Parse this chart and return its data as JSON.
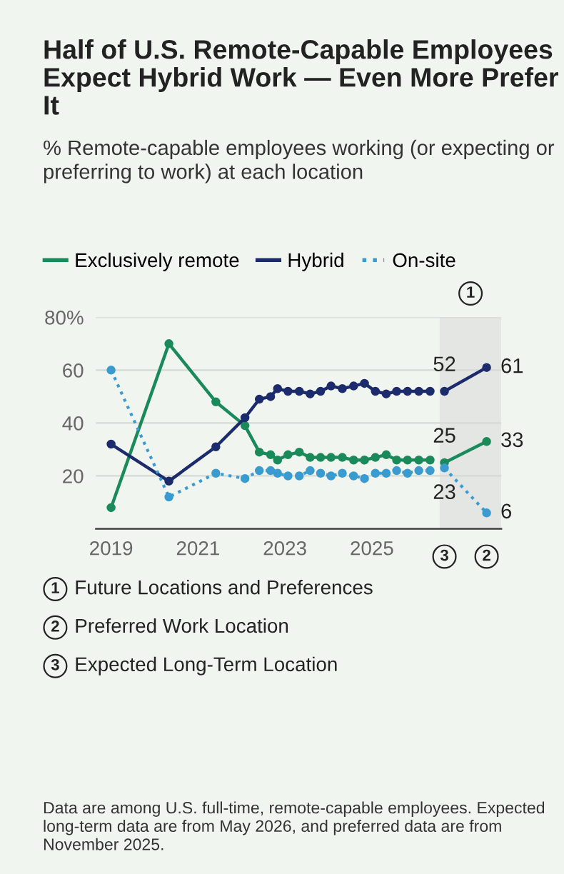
{
  "chart_data": {
    "type": "line",
    "title": "Half of U.S. Remote-Capable Employees Expect Hybrid Work — Even More Prefer It",
    "subtitle": "% Remote-capable employees working (or expecting or preferring to work) at each location",
    "series": [
      {
        "name": "Exclusively remote",
        "color": "#1b8a5a",
        "line_style": "solid",
        "x": [
          2019.0,
          2020.33,
          2021.41,
          2022.08,
          2022.41,
          2022.67,
          2022.83,
          2023.07,
          2023.33,
          2023.58,
          2023.82,
          2024.06,
          2024.32,
          2024.58,
          2024.83,
          2025.08,
          2025.33,
          2025.57,
          2025.82,
          2026.08,
          2026.34
        ],
        "values": [
          8,
          70,
          48,
          39,
          29,
          28,
          26,
          28,
          29,
          27,
          27,
          27,
          27,
          26,
          26,
          27,
          28,
          26,
          26,
          26,
          26
        ]
      },
      {
        "name": "Hybrid",
        "color": "#1c2b6b",
        "line_style": "solid",
        "x": [
          2019.0,
          2020.33,
          2021.41,
          2022.08,
          2022.41,
          2022.67,
          2022.83,
          2023.07,
          2023.33,
          2023.58,
          2023.82,
          2024.06,
          2024.32,
          2024.58,
          2024.83,
          2025.08,
          2025.33,
          2025.57,
          2025.82,
          2026.08,
          2026.34
        ],
        "values": [
          32,
          18,
          31,
          42,
          49,
          50,
          53,
          52,
          52,
          51,
          52,
          54,
          53,
          54,
          55,
          52,
          51,
          52,
          52,
          52,
          52
        ]
      },
      {
        "name": "On-site",
        "color": "#3a9bd0",
        "line_style": "dotted",
        "x": [
          2019.0,
          2020.33,
          2021.41,
          2022.08,
          2022.41,
          2022.67,
          2022.83,
          2023.07,
          2023.33,
          2023.58,
          2023.82,
          2024.06,
          2024.32,
          2024.58,
          2024.83,
          2025.08,
          2025.33,
          2025.57,
          2025.82,
          2026.08,
          2026.34
        ],
        "values": [
          60,
          12,
          21,
          19,
          22,
          22,
          21,
          20,
          20,
          22,
          21,
          20,
          21,
          20,
          19,
          21,
          21,
          22,
          21,
          22,
          22
        ]
      },
      {
        "color": "#1b8a5a",
        "line_style": "solid",
        "x": [
          2026.67,
          2027.64
        ],
        "values": [
          25,
          33
        ],
        "value_labels": [
          "25",
          "33"
        ]
      },
      {
        "color": "#1c2b6b",
        "line_style": "solid",
        "x": [
          2026.67,
          2027.64
        ],
        "values": [
          52,
          61
        ],
        "value_labels": [
          "52",
          "61"
        ]
      },
      {
        "color": "#3a9bd0",
        "line_style": "dotted",
        "x": [
          2026.67,
          2027.64
        ],
        "values": [
          23,
          6
        ],
        "value_labels": [
          "23",
          "6"
        ]
      }
    ],
    "xlim": [
      2018.65,
      2027.98
    ],
    "xticks": [
      2019,
      2021,
      2023,
      2025
    ],
    "ylim": [
      0,
      80
    ],
    "yticks": [
      20,
      40,
      60,
      {
        "value": 80,
        "label": "80%"
      }
    ],
    "grid": "y",
    "legend": "top left",
    "marker": "circle",
    "bands": [
      {
        "axis": "x",
        "from": 2026.56,
        "to": 2027.98,
        "color": "#e3e6e3"
      }
    ],
    "annotations": [
      {
        "text": "1",
        "x": 2027.27,
        "y": 80
      },
      {
        "text": "3",
        "x": 2026.67,
        "y": 0
      },
      {
        "text": "2",
        "x": 2027.64,
        "y": 0
      },
      "1 Future Locations and Preferences",
      "2 Preferred Work Location",
      "3 Expected Long-Term Location",
      "Data are among U.S. full-time, remote-capable employees. Expected long-term data are from May 2026, and preferred data are from November 2025."
    ]
  }
}
